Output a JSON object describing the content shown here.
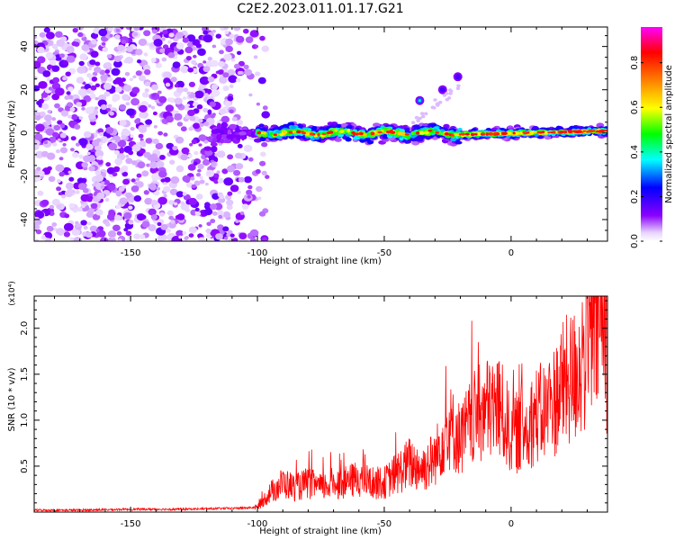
{
  "title": "C2E2.2023.011.01.17.G21",
  "chart_data": [
    {
      "type": "heatmap",
      "xlabel": "Height of straight line (km)",
      "ylabel": "Frequency (Hz)",
      "xlim": [
        -188,
        38
      ],
      "ylim": [
        -50,
        49
      ],
      "x_ticks": [
        -150,
        -100,
        -50,
        0
      ],
      "y_ticks": [
        -40,
        -20,
        0,
        20,
        40
      ],
      "colorbar": {
        "label": "Normalized spectral amplitude",
        "range": [
          0,
          0.96
        ],
        "ticks": [
          "0.0",
          "0.2",
          "0.4",
          "0.6",
          "0.8"
        ],
        "colormap": [
          "#ffffff",
          "#e8d4ff",
          "#8a00ff",
          "#0000ff",
          "#00ffff",
          "#00ff00",
          "#ffff00",
          "#ff8000",
          "#ff0000",
          "#ff00ff"
        ]
      },
      "features": [
        {
          "name": "noise",
          "x_range": [
            -188,
            -100
          ],
          "y_range": [
            -50,
            49
          ]
        },
        {
          "name": "signal-band",
          "x_range": [
            -100,
            38
          ],
          "y_center": 0,
          "y_halfwidth": 4
        },
        {
          "name": "branch",
          "points": [
            [
              -36,
              15
            ],
            [
              -27,
              20
            ],
            [
              -21,
              26
            ]
          ]
        }
      ]
    },
    {
      "type": "line",
      "xlabel": "Height of straight line (km)",
      "ylabel": "SNR (10 * v/v)",
      "y_multiplier": "(x10⁴)",
      "xlim": [
        -188,
        38
      ],
      "ylim": [
        0,
        2.35
      ],
      "x_ticks": [
        -150,
        -100,
        -50,
        0
      ],
      "y_ticks": [
        0.5,
        1.0,
        1.5,
        2.0
      ],
      "y_tick_labels": [
        "0.5",
        "1.0",
        "1.5",
        "2.0"
      ],
      "color": "#ff0000",
      "x": [
        -188,
        -170,
        -150,
        -130,
        -110,
        -100,
        -95,
        -90,
        -85,
        -80,
        -75,
        -70,
        -65,
        -60,
        -55,
        -50,
        -45,
        -40,
        -35,
        -30,
        -25,
        -20,
        -15,
        -10,
        -5,
        0,
        5,
        10,
        15,
        20,
        25,
        30,
        35,
        38
      ],
      "y": [
        0.02,
        0.02,
        0.03,
        0.03,
        0.04,
        0.05,
        0.2,
        0.3,
        0.25,
        0.3,
        0.25,
        0.3,
        0.3,
        0.35,
        0.3,
        0.3,
        0.4,
        0.5,
        0.45,
        0.55,
        0.9,
        0.75,
        0.95,
        1.05,
        1.1,
        0.8,
        0.85,
        1.0,
        1.05,
        1.3,
        1.4,
        1.7,
        2.0,
        1.6
      ]
    }
  ]
}
